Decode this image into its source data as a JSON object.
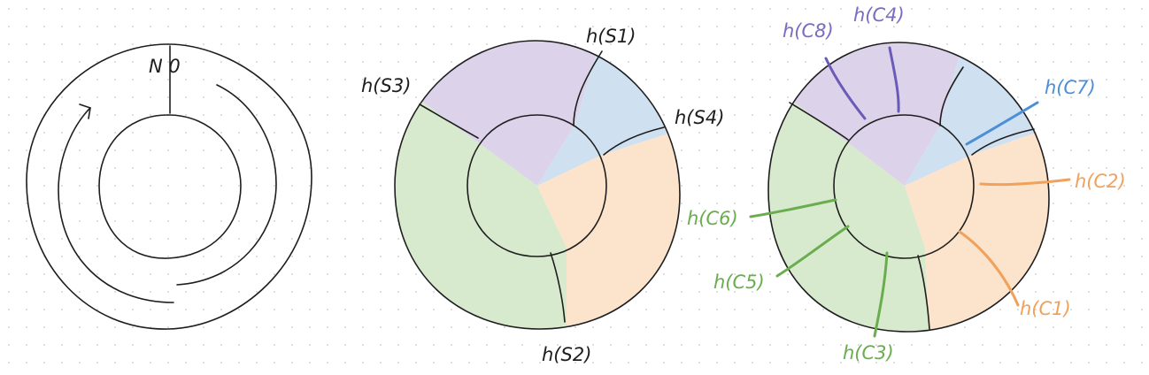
{
  "colors": {
    "outline": "#1e1e1e",
    "blue": "#cfe0f1",
    "purple": "#dcd3ea",
    "orange": "#fce3cc",
    "green": "#d8eace",
    "label_black": "#1e1e1e",
    "label_purple": "#7a6cc0",
    "label_blue": "#4d8fd6",
    "label_orange": "#f0a15c",
    "label_green": "#6aad4f"
  },
  "ring1": {
    "label": "N 0"
  },
  "ring2": {
    "labels": {
      "s1": "h(S1)",
      "s2": "h(S2)",
      "s3": "h(S3)",
      "s4": "h(S4)"
    }
  },
  "ring3": {
    "labels": {
      "c1": "h(C1)",
      "c2": "h(C2)",
      "c3": "h(C3)",
      "c4": "h(C4)",
      "c5": "h(C5)",
      "c6": "h(C6)",
      "c7": "h(C7)",
      "c8": "h(C8)"
    }
  }
}
